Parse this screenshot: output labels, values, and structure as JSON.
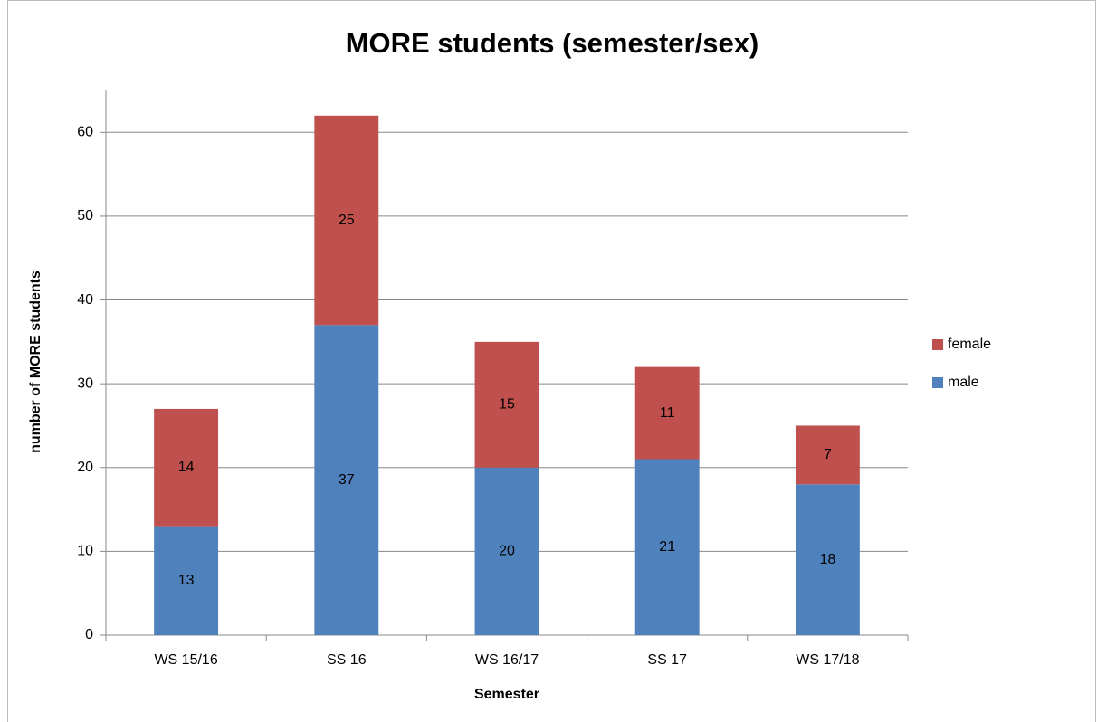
{
  "chart_data": {
    "type": "stacked_bar",
    "title": "MORE students (semester/sex)",
    "xlabel": "Semester",
    "ylabel": "number of MORE students",
    "categories": [
      "WS 15/16",
      "SS 16",
      "WS 16/17",
      "SS 17",
      "WS 17/18"
    ],
    "series": [
      {
        "name": "male",
        "color": "#4f81bd",
        "values": [
          13,
          37,
          20,
          21,
          18
        ]
      },
      {
        "name": "female",
        "color": "#c0504d",
        "values": [
          14,
          25,
          15,
          11,
          7
        ]
      }
    ],
    "ylim": [
      0,
      65
    ],
    "yticks": [
      0,
      10,
      20,
      30,
      40,
      50,
      60
    ],
    "grid": true,
    "legend": "right"
  }
}
